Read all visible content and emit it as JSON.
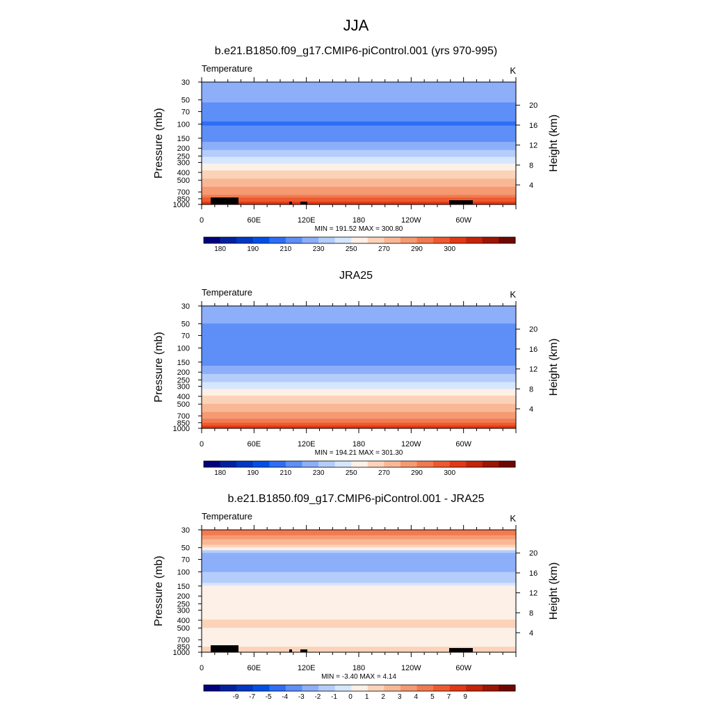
{
  "figure": {
    "title": "JJA",
    "colors": {
      "abs_scale": [
        "#00007f",
        "#0022a0",
        "#0038c4",
        "#0050e8",
        "#2e6ef5",
        "#5e8ff7",
        "#8daef9",
        "#b4cdfb",
        "#d6e6fd",
        "#fdf0e6",
        "#fbd3b9",
        "#f8b896",
        "#f59a72",
        "#f27a50",
        "#ee5a2f",
        "#e33816",
        "#c42408",
        "#9d1503",
        "#700600"
      ],
      "diff_scale": [
        "#00007f",
        "#0022a0",
        "#0038c4",
        "#0050e8",
        "#2e6ef5",
        "#5e8ff7",
        "#8daef9",
        "#b4cdfb",
        "#d6e6fd",
        "#fdf0e6",
        "#fbd3b9",
        "#f8b896",
        "#f59a72",
        "#f27a50",
        "#ee5a2f",
        "#e33816",
        "#c42408",
        "#9d1503",
        "#700600"
      ]
    }
  },
  "chart_data": [
    {
      "type": "heatmap",
      "title": "b.e21.B1850.f09_g17.CMIP6-piControl.001 (yrs 970-995)",
      "variable": "Temperature",
      "units": "K",
      "xlabel": "",
      "ylabel": "Pressure (mb)",
      "y2label": "Height (km)",
      "xticks": [
        "0",
        "60E",
        "120E",
        "180",
        "120W",
        "60W"
      ],
      "yticks": [
        30,
        50,
        70,
        100,
        150,
        200,
        250,
        300,
        400,
        500,
        700,
        850,
        1000
      ],
      "y2ticks": [
        4,
        8,
        12,
        16,
        20
      ],
      "stats": "MIN = 191.52  MAX = 300.80",
      "profile_K": [
        {
          "p": 30,
          "t": 218
        },
        {
          "p": 50,
          "t": 212
        },
        {
          "p": 70,
          "t": 204
        },
        {
          "p": 100,
          "t": 199
        },
        {
          "p": 150,
          "t": 206
        },
        {
          "p": 200,
          "t": 218
        },
        {
          "p": 250,
          "t": 228
        },
        {
          "p": 300,
          "t": 238
        },
        {
          "p": 400,
          "t": 252
        },
        {
          "p": 500,
          "t": 262
        },
        {
          "p": 700,
          "t": 276
        },
        {
          "p": 850,
          "t": 286
        },
        {
          "p": 1000,
          "t": 294
        }
      ],
      "colorbar": {
        "labels": [
          "180",
          "190",
          "210",
          "230",
          "250",
          "270",
          "290",
          "300"
        ]
      }
    },
    {
      "type": "heatmap",
      "title": "JRA25",
      "variable": "Temperature",
      "units": "K",
      "xlabel": "",
      "ylabel": "Pressure (mb)",
      "y2label": "Height (km)",
      "xticks": [
        "0",
        "60E",
        "120E",
        "180",
        "120W",
        "60W"
      ],
      "yticks": [
        30,
        50,
        70,
        100,
        150,
        200,
        250,
        300,
        400,
        500,
        700,
        850,
        1000
      ],
      "y2ticks": [
        4,
        8,
        12,
        16,
        20
      ],
      "stats": "MIN = 194.21  MAX = 301.30",
      "profile_K": [
        {
          "p": 30,
          "t": 215
        },
        {
          "p": 50,
          "t": 210
        },
        {
          "p": 70,
          "t": 205
        },
        {
          "p": 100,
          "t": 200
        },
        {
          "p": 150,
          "t": 206
        },
        {
          "p": 200,
          "t": 217
        },
        {
          "p": 250,
          "t": 227
        },
        {
          "p": 300,
          "t": 237
        },
        {
          "p": 400,
          "t": 251
        },
        {
          "p": 500,
          "t": 261
        },
        {
          "p": 700,
          "t": 275
        },
        {
          "p": 850,
          "t": 285
        },
        {
          "p": 1000,
          "t": 295
        }
      ],
      "colorbar": {
        "labels": [
          "180",
          "190",
          "210",
          "230",
          "250",
          "270",
          "290",
          "300"
        ]
      }
    },
    {
      "type": "heatmap",
      "title": "b.e21.B1850.f09_g17.CMIP6-piControl.001 - JRA25",
      "variable": "Temperature",
      "units": "K",
      "xlabel": "",
      "ylabel": "Pressure (mb)",
      "y2label": "Height (km)",
      "xticks": [
        "0",
        "60E",
        "120E",
        "180",
        "120W",
        "60W"
      ],
      "yticks": [
        30,
        50,
        70,
        100,
        150,
        200,
        250,
        300,
        400,
        500,
        700,
        850,
        1000
      ],
      "y2ticks": [
        4,
        8,
        12,
        16,
        20
      ],
      "stats": "MIN = -3.40  MAX =  4.14",
      "profile_K": [
        {
          "p": 30,
          "t": 4
        },
        {
          "p": 40,
          "t": 2
        },
        {
          "p": 50,
          "t": 0.5
        },
        {
          "p": 60,
          "t": -2.5
        },
        {
          "p": 70,
          "t": -3
        },
        {
          "p": 85,
          "t": -2.5
        },
        {
          "p": 100,
          "t": -2
        },
        {
          "p": 130,
          "t": -1.5
        },
        {
          "p": 150,
          "t": -0.5
        },
        {
          "p": 300,
          "t": -0.5
        },
        {
          "p": 400,
          "t": 0.5
        },
        {
          "p": 500,
          "t": 0.5
        },
        {
          "p": 700,
          "t": -0.5
        },
        {
          "p": 850,
          "t": 0.5
        },
        {
          "p": 1000,
          "t": 0.5
        }
      ],
      "colorbar": {
        "labels": [
          "-9",
          "-7",
          "-5",
          "-4",
          "-3",
          "-2",
          "-1",
          "0",
          "1",
          "2",
          "3",
          "4",
          "5",
          "7",
          "9"
        ]
      }
    }
  ]
}
